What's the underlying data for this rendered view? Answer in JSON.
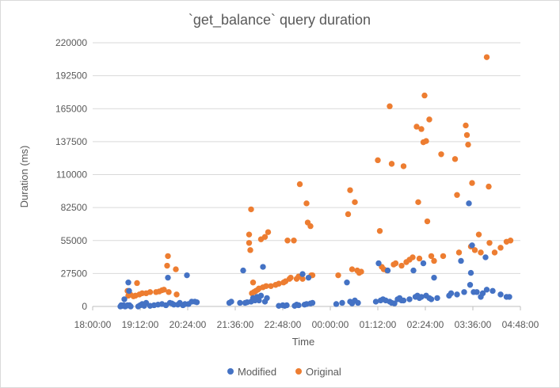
{
  "chart_data": {
    "type": "scatter",
    "title": "`get_balance` query duration",
    "xlabel": "Time",
    "ylabel": "Duration (ms)",
    "x_unit": "time of day (hours from 18:00)",
    "xlim": [
      0,
      10.8
    ],
    "ylim": [
      0,
      220000
    ],
    "grid": "horizontal",
    "legend_position": "bottom",
    "x_ticks": [
      {
        "value": 0,
        "label": "18:00:00"
      },
      {
        "value": 1.2,
        "label": "19:12:00"
      },
      {
        "value": 2.4,
        "label": "20:24:00"
      },
      {
        "value": 3.6,
        "label": "21:36:00"
      },
      {
        "value": 4.8,
        "label": "22:48:00"
      },
      {
        "value": 6.0,
        "label": "00:00:00"
      },
      {
        "value": 7.2,
        "label": "01:12:00"
      },
      {
        "value": 8.4,
        "label": "02:24:00"
      },
      {
        "value": 9.6,
        "label": "03:36:00"
      },
      {
        "value": 10.8,
        "label": "04:48:00"
      }
    ],
    "y_ticks": [
      {
        "value": 0,
        "label": "0"
      },
      {
        "value": 27500,
        "label": "27500"
      },
      {
        "value": 55000,
        "label": "55000"
      },
      {
        "value": 82500,
        "label": "82500"
      },
      {
        "value": 110000,
        "label": "110000"
      },
      {
        "value": 137500,
        "label": "137500"
      },
      {
        "value": 165000,
        "label": "165000"
      },
      {
        "value": 192500,
        "label": "192500"
      },
      {
        "value": 220000,
        "label": "220000"
      }
    ],
    "series": [
      {
        "name": "Original",
        "color": "#ED7D31",
        "points": [
          [
            0.88,
            13000
          ],
          [
            0.9,
            9000
          ],
          [
            0.95,
            10000
          ],
          [
            1.03,
            8500
          ],
          [
            1.08,
            9000
          ],
          [
            1.12,
            19500
          ],
          [
            1.18,
            10000
          ],
          [
            1.25,
            11000
          ],
          [
            1.35,
            11000
          ],
          [
            1.45,
            12000
          ],
          [
            1.6,
            12000
          ],
          [
            1.68,
            12500
          ],
          [
            1.75,
            13500
          ],
          [
            1.8,
            14000
          ],
          [
            1.88,
            34000
          ],
          [
            1.9,
            42000
          ],
          [
            1.92,
            12000
          ],
          [
            2.1,
            31000
          ],
          [
            2.12,
            10000
          ],
          [
            3.95,
            60000
          ],
          [
            3.95,
            53000
          ],
          [
            3.98,
            47000
          ],
          [
            4.0,
            81000
          ],
          [
            4.02,
            11000
          ],
          [
            4.05,
            20000
          ],
          [
            4.07,
            12000
          ],
          [
            4.12,
            13000
          ],
          [
            4.17,
            14000
          ],
          [
            4.2,
            15000
          ],
          [
            4.25,
            56000
          ],
          [
            4.3,
            16000
          ],
          [
            4.35,
            58000
          ],
          [
            4.38,
            17000
          ],
          [
            4.43,
            62000
          ],
          [
            4.5,
            17000
          ],
          [
            4.62,
            18000
          ],
          [
            4.7,
            19000
          ],
          [
            4.82,
            20000
          ],
          [
            4.87,
            21000
          ],
          [
            4.92,
            55000
          ],
          [
            4.97,
            23000
          ],
          [
            5.0,
            24000
          ],
          [
            5.08,
            55000
          ],
          [
            5.15,
            23000
          ],
          [
            5.2,
            25000
          ],
          [
            5.23,
            102000
          ],
          [
            5.3,
            23000
          ],
          [
            5.4,
            86000
          ],
          [
            5.43,
            70000
          ],
          [
            5.5,
            67000
          ],
          [
            5.52,
            26000
          ],
          [
            5.55,
            26000
          ],
          [
            6.2,
            26000
          ],
          [
            6.45,
            77000
          ],
          [
            6.5,
            97000
          ],
          [
            6.55,
            31000
          ],
          [
            6.62,
            87000
          ],
          [
            6.68,
            30000
          ],
          [
            6.73,
            28000
          ],
          [
            6.78,
            29000
          ],
          [
            7.2,
            122000
          ],
          [
            7.25,
            63000
          ],
          [
            7.3,
            33000
          ],
          [
            7.35,
            31000
          ],
          [
            7.43,
            30000
          ],
          [
            7.5,
            167000
          ],
          [
            7.55,
            119000
          ],
          [
            7.6,
            35000
          ],
          [
            7.65,
            36000
          ],
          [
            7.8,
            34000
          ],
          [
            7.85,
            117000
          ],
          [
            7.92,
            37000
          ],
          [
            8.0,
            39000
          ],
          [
            8.08,
            41000
          ],
          [
            8.18,
            150000
          ],
          [
            8.22,
            87000
          ],
          [
            8.25,
            40000
          ],
          [
            8.3,
            148000
          ],
          [
            8.35,
            137000
          ],
          [
            8.38,
            176000
          ],
          [
            8.42,
            138000
          ],
          [
            8.45,
            71000
          ],
          [
            8.5,
            156000
          ],
          [
            8.55,
            42000
          ],
          [
            8.62,
            38000
          ],
          [
            8.8,
            127000
          ],
          [
            8.85,
            42000
          ],
          [
            9.15,
            123000
          ],
          [
            9.2,
            93000
          ],
          [
            9.25,
            45000
          ],
          [
            9.42,
            151000
          ],
          [
            9.45,
            143000
          ],
          [
            9.48,
            135000
          ],
          [
            9.55,
            50000
          ],
          [
            9.58,
            103000
          ],
          [
            9.65,
            47000
          ],
          [
            9.75,
            60000
          ],
          [
            9.8,
            45000
          ],
          [
            9.95,
            208000
          ],
          [
            10.0,
            100000
          ],
          [
            10.02,
            53000
          ],
          [
            10.15,
            45000
          ],
          [
            10.3,
            49000
          ],
          [
            10.45,
            54000
          ],
          [
            10.55,
            55000
          ]
        ]
      },
      {
        "name": "Modified",
        "color": "#4472C4",
        "points": [
          [
            0.7,
            0
          ],
          [
            0.72,
            1000
          ],
          [
            0.75,
            500
          ],
          [
            0.78,
            1000
          ],
          [
            0.8,
            6000
          ],
          [
            0.82,
            0
          ],
          [
            0.85,
            500
          ],
          [
            0.88,
            1000
          ],
          [
            0.9,
            20000
          ],
          [
            0.92,
            13000
          ],
          [
            0.93,
            1000
          ],
          [
            0.96,
            0
          ],
          [
            1.15,
            0
          ],
          [
            1.2,
            1000
          ],
          [
            1.25,
            2000
          ],
          [
            1.3,
            500
          ],
          [
            1.35,
            3000
          ],
          [
            1.45,
            500
          ],
          [
            1.55,
            1000
          ],
          [
            1.65,
            1500
          ],
          [
            1.75,
            2000
          ],
          [
            1.85,
            1000
          ],
          [
            1.9,
            24000
          ],
          [
            1.95,
            3000
          ],
          [
            2.0,
            2500
          ],
          [
            2.05,
            1500
          ],
          [
            2.15,
            1500
          ],
          [
            2.2,
            3000
          ],
          [
            2.28,
            1000
          ],
          [
            2.33,
            2000
          ],
          [
            2.38,
            26000
          ],
          [
            2.42,
            2000
          ],
          [
            2.5,
            4000
          ],
          [
            2.58,
            4000
          ],
          [
            2.63,
            3500
          ],
          [
            3.45,
            3000
          ],
          [
            3.5,
            4000
          ],
          [
            3.72,
            3000
          ],
          [
            3.8,
            30000
          ],
          [
            3.85,
            3000
          ],
          [
            3.9,
            3500
          ],
          [
            4.0,
            4000
          ],
          [
            4.05,
            7000
          ],
          [
            4.1,
            5000
          ],
          [
            4.15,
            8000
          ],
          [
            4.2,
            5000
          ],
          [
            4.25,
            9000
          ],
          [
            4.3,
            33000
          ],
          [
            4.35,
            4000
          ],
          [
            4.4,
            7000
          ],
          [
            4.7,
            500
          ],
          [
            4.8,
            1000
          ],
          [
            4.85,
            500
          ],
          [
            4.9,
            1000
          ],
          [
            5.1,
            500
          ],
          [
            5.15,
            1500
          ],
          [
            5.2,
            1000
          ],
          [
            5.3,
            27000
          ],
          [
            5.35,
            1500
          ],
          [
            5.4,
            2000
          ],
          [
            5.45,
            24000
          ],
          [
            5.5,
            2500
          ],
          [
            5.55,
            3000
          ],
          [
            6.15,
            2000
          ],
          [
            6.3,
            3000
          ],
          [
            6.42,
            20000
          ],
          [
            6.5,
            4000
          ],
          [
            6.55,
            2500
          ],
          [
            6.62,
            5000
          ],
          [
            6.7,
            3000
          ],
          [
            7.15,
            4000
          ],
          [
            7.22,
            36000
          ],
          [
            7.27,
            5000
          ],
          [
            7.33,
            6000
          ],
          [
            7.4,
            5000
          ],
          [
            7.45,
            30000
          ],
          [
            7.5,
            4000
          ],
          [
            7.55,
            3000
          ],
          [
            7.62,
            2500
          ],
          [
            7.7,
            6000
          ],
          [
            7.75,
            7000
          ],
          [
            7.8,
            5000
          ],
          [
            7.85,
            5000
          ],
          [
            8.0,
            6000
          ],
          [
            8.1,
            30000
          ],
          [
            8.15,
            8000
          ],
          [
            8.2,
            9000
          ],
          [
            8.25,
            7000
          ],
          [
            8.3,
            8000
          ],
          [
            8.35,
            36000
          ],
          [
            8.42,
            9000
          ],
          [
            8.5,
            7000
          ],
          [
            8.55,
            6000
          ],
          [
            8.62,
            24000
          ],
          [
            8.7,
            7000
          ],
          [
            9.0,
            9000
          ],
          [
            9.05,
            11000
          ],
          [
            9.2,
            10000
          ],
          [
            9.3,
            38000
          ],
          [
            9.38,
            12000
          ],
          [
            9.5,
            86000
          ],
          [
            9.53,
            18000
          ],
          [
            9.55,
            28000
          ],
          [
            9.58,
            51000
          ],
          [
            9.62,
            12000
          ],
          [
            9.7,
            12000
          ],
          [
            9.8,
            8000
          ],
          [
            9.85,
            11000
          ],
          [
            9.92,
            41000
          ],
          [
            9.95,
            14000
          ],
          [
            10.1,
            13000
          ],
          [
            10.3,
            10000
          ],
          [
            10.45,
            8000
          ],
          [
            10.52,
            8000
          ]
        ]
      }
    ]
  }
}
